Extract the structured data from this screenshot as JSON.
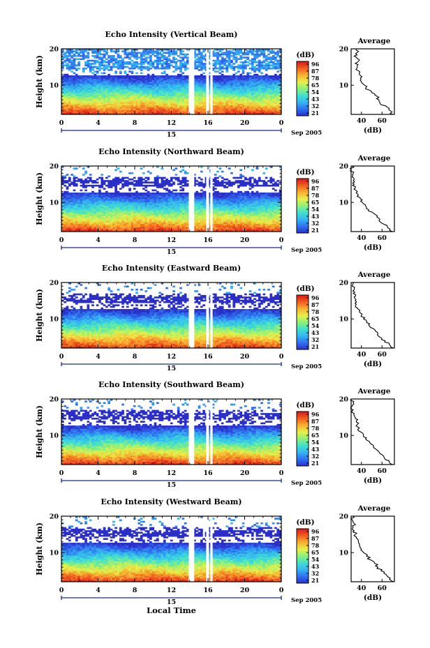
{
  "figure": {
    "xlabel": "Local Time",
    "date_label": "Sep 2005",
    "day_label": "15",
    "colorbar_unit": "(dB)",
    "colorbar_ticks": [
      "96",
      "87",
      "78",
      "65",
      "54",
      "43",
      "32",
      "21"
    ],
    "colors": {
      "scale": [
        "#2b2fc8",
        "#2f6ff0",
        "#35b4f2",
        "#3fe0d0",
        "#8cf07a",
        "#e8f04a",
        "#f8b030",
        "#f06020",
        "#d81818"
      ],
      "axis": "#000000",
      "time_axis_line": "#1a2a8c",
      "background": "#ffffff"
    }
  },
  "chart_data": [
    {
      "type": "heatmap",
      "title": "Echo Intensity (Vertical Beam)",
      "ylabel": "Height (km)",
      "x_ticks": [
        "0",
        "4",
        "8",
        "12",
        "16",
        "20",
        "0"
      ],
      "y_ticks": [
        "20",
        "10"
      ],
      "xlim": [
        0,
        24
      ],
      "ylim": [
        2,
        20
      ],
      "gaps_hours": [
        [
          13.9,
          14.5
        ],
        [
          15.8,
          16.1
        ],
        [
          16.25,
          16.5
        ]
      ],
      "profile": {
        "title": "Average",
        "xlabel": "(dB)",
        "x_ticks": [
          "40",
          "60"
        ],
        "y_ticks": [
          "20",
          "10"
        ],
        "xlim": [
          30,
          72
        ],
        "heights": [
          2,
          3,
          4,
          5,
          6,
          7,
          8,
          9,
          10,
          11,
          12,
          13,
          14,
          15,
          16,
          17,
          18,
          19,
          20
        ],
        "values": [
          70,
          68,
          65,
          58,
          57,
          55,
          50,
          44,
          43,
          40,
          39,
          38,
          37,
          36,
          34,
          38,
          33,
          36,
          35
        ]
      }
    },
    {
      "type": "heatmap",
      "title": "Echo Intensity (Northward Beam)",
      "ylabel": "Height (km)",
      "x_ticks": [
        "0",
        "4",
        "8",
        "12",
        "16",
        "20",
        "0"
      ],
      "y_ticks": [
        "20",
        "10"
      ],
      "xlim": [
        0,
        24
      ],
      "ylim": [
        2,
        20
      ],
      "gaps_hours": [
        [
          13.9,
          14.5
        ],
        [
          15.8,
          16.1
        ],
        [
          16.25,
          16.5
        ]
      ],
      "profile": {
        "title": "Average",
        "xlabel": "(dB)",
        "x_ticks": [
          "40",
          "60"
        ],
        "y_ticks": [
          "20",
          "10"
        ],
        "xlim": [
          30,
          72
        ],
        "heights": [
          2,
          3,
          4,
          5,
          6,
          7,
          8,
          9,
          10,
          11,
          12,
          13,
          14,
          15,
          16,
          17,
          18,
          19,
          20
        ],
        "values": [
          70,
          66,
          62,
          57,
          55,
          52,
          47,
          44,
          41,
          39,
          37,
          36,
          34,
          33,
          32,
          31,
          32,
          30,
          31
        ]
      }
    },
    {
      "type": "heatmap",
      "title": "Echo Intensity (Eastward Beam)",
      "ylabel": "Height (km)",
      "x_ticks": [
        "0",
        "4",
        "8",
        "12",
        "16",
        "20",
        "0"
      ],
      "y_ticks": [
        "20",
        "10"
      ],
      "xlim": [
        0,
        24
      ],
      "ylim": [
        2,
        20
      ],
      "gaps_hours": [
        [
          13.9,
          14.5
        ],
        [
          15.8,
          16.1
        ],
        [
          16.25,
          16.5
        ]
      ],
      "profile": {
        "title": "Average",
        "xlabel": "(dB)",
        "x_ticks": [
          "40",
          "60"
        ],
        "y_ticks": [
          "20",
          "10"
        ],
        "xlim": [
          30,
          72
        ],
        "heights": [
          2,
          3,
          4,
          5,
          6,
          7,
          8,
          9,
          10,
          11,
          12,
          13,
          14,
          15,
          16,
          17,
          18,
          19,
          20
        ],
        "values": [
          71,
          67,
          63,
          58,
          56,
          53,
          48,
          45,
          42,
          40,
          38,
          36,
          35,
          34,
          33,
          32,
          33,
          31,
          32
        ]
      }
    },
    {
      "type": "heatmap",
      "title": "Echo Intensity (Southward Beam)",
      "ylabel": "Height (km)",
      "x_ticks": [
        "0",
        "4",
        "8",
        "12",
        "16",
        "20",
        "0"
      ],
      "y_ticks": [
        "20",
        "10"
      ],
      "xlim": [
        0,
        24
      ],
      "ylim": [
        2,
        20
      ],
      "gaps_hours": [
        [
          13.9,
          14.5
        ],
        [
          15.8,
          16.1
        ],
        [
          16.25,
          16.5
        ]
      ],
      "profile": {
        "title": "Average",
        "xlabel": "(dB)",
        "x_ticks": [
          "40",
          "60"
        ],
        "y_ticks": [
          "20",
          "10"
        ],
        "xlim": [
          30,
          72
        ],
        "heights": [
          2,
          3,
          4,
          5,
          6,
          7,
          8,
          9,
          10,
          11,
          12,
          13,
          14,
          15,
          16,
          17,
          18,
          19,
          20
        ],
        "values": [
          70,
          67,
          62,
          58,
          55,
          52,
          48,
          44,
          42,
          39,
          38,
          36,
          35,
          34,
          33,
          32,
          31,
          32,
          30
        ]
      }
    },
    {
      "type": "heatmap",
      "title": "Echo Intensity (Westward Beam)",
      "ylabel": "Height (km)",
      "x_ticks": [
        "0",
        "4",
        "8",
        "12",
        "16",
        "20",
        "0"
      ],
      "y_ticks": [
        "20",
        "10"
      ],
      "xlim": [
        0,
        24
      ],
      "ylim": [
        2,
        20
      ],
      "gaps_hours": [
        [
          13.9,
          14.5
        ],
        [
          15.8,
          16.1
        ],
        [
          16.25,
          16.5
        ]
      ],
      "profile": {
        "title": "Average",
        "xlabel": "(dB)",
        "x_ticks": [
          "40",
          "60"
        ],
        "y_ticks": [
          "20",
          "10"
        ],
        "xlim": [
          30,
          72
        ],
        "heights": [
          2,
          3,
          4,
          5,
          6,
          7,
          8,
          9,
          10,
          11,
          12,
          13,
          14,
          15,
          16,
          17,
          18,
          19,
          20
        ],
        "values": [
          71,
          68,
          64,
          59,
          56,
          53,
          49,
          45,
          42,
          40,
          38,
          37,
          35,
          34,
          33,
          32,
          33,
          31,
          32
        ]
      }
    }
  ]
}
